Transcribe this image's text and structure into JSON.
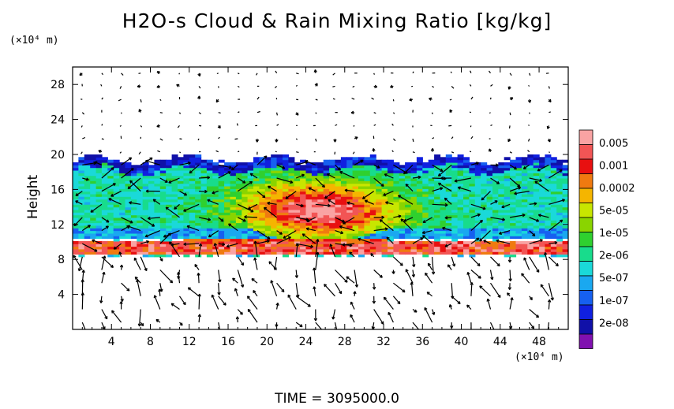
{
  "title": "H2O-s Cloud & Rain Mixing Ratio [kg/kg]",
  "footer": "TIME = 3095000.0",
  "chart_data": {
    "type": "heatmap",
    "title": "H2O-s Cloud & Rain Mixing Ratio [kg/kg]",
    "xlabel": "",
    "ylabel": "Height",
    "x_unit_note": "(×10⁴ m)",
    "y_unit_note": "(×10⁴ m)",
    "xlim": [
      0,
      51
    ],
    "ylim": [
      0,
      30
    ],
    "x_ticks": [
      4,
      8,
      12,
      16,
      20,
      24,
      28,
      32,
      36,
      40,
      44,
      48
    ],
    "y_ticks": [
      4,
      8,
      12,
      16,
      20,
      24,
      28
    ],
    "colorbar": {
      "labels": [
        "0.005",
        "0.001",
        "0.0002",
        "5e-05",
        "1e-05",
        "2e-06",
        "5e-07",
        "1e-07",
        "2e-08"
      ],
      "colors": [
        "#f9a3a3",
        "#f25555",
        "#e81010",
        "#f07a10",
        "#f5b500",
        "#c8e600",
        "#8ad400",
        "#2fd02f",
        "#18dc8c",
        "#1ad9d9",
        "#1aa8f0",
        "#1660f0",
        "#1020e0",
        "#1010a8",
        "#8010b0"
      ]
    },
    "layers": [
      {
        "name": "upper cloud",
        "y_range": [
          10,
          19.5
        ],
        "dominant_level": "1e-05"
      },
      {
        "name": "core",
        "x_range": [
          12,
          34
        ],
        "y_range": [
          10,
          18
        ],
        "dominant_level": "0.001"
      },
      {
        "name": "lower band",
        "y_range": [
          8.5,
          10
        ],
        "dominant_level": "0.001"
      }
    ]
  }
}
